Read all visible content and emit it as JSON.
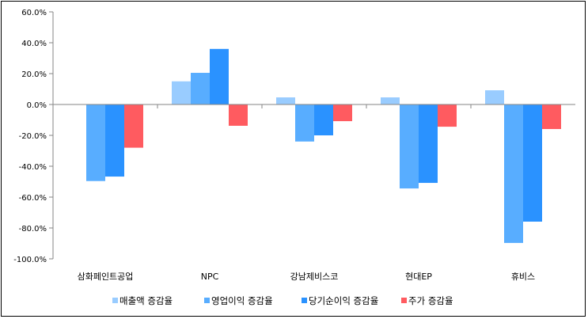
{
  "chart_data": {
    "type": "bar",
    "title": "",
    "xlabel": "",
    "ylabel": "",
    "ylim": [
      -100,
      60
    ],
    "ytick_step": 20,
    "ytick_labels": [
      "60.0%",
      "40.0%",
      "20.0%",
      "0.0%",
      "-20.0%",
      "-40.0%",
      "-60.0%",
      "-80.0%",
      "-100.0%"
    ],
    "categories": [
      "삼화페인트공업",
      "NPC",
      "강남제비스코",
      "현대EP",
      "휴비스"
    ],
    "series": [
      {
        "name": "매출액 증감율",
        "color": "#99CCFF",
        "values": [
          0,
          15.0,
          4.6,
          4.6,
          9.2
        ]
      },
      {
        "name": "영업이익 증감율",
        "color": "#58ADFF",
        "values": [
          -49.6,
          20.5,
          -24.0,
          -54.4,
          -89.7
        ]
      },
      {
        "name": "당기순이익 증감율",
        "color": "#2A92FF",
        "values": [
          -46.7,
          36.0,
          -20.0,
          -50.8,
          -75.9
        ]
      },
      {
        "name": "주가 증감율",
        "color": "#FF5B60",
        "values": [
          -28.0,
          -13.8,
          -10.8,
          -14.4,
          -15.9
        ]
      }
    ],
    "legend_position": "bottom",
    "grid": false
  }
}
